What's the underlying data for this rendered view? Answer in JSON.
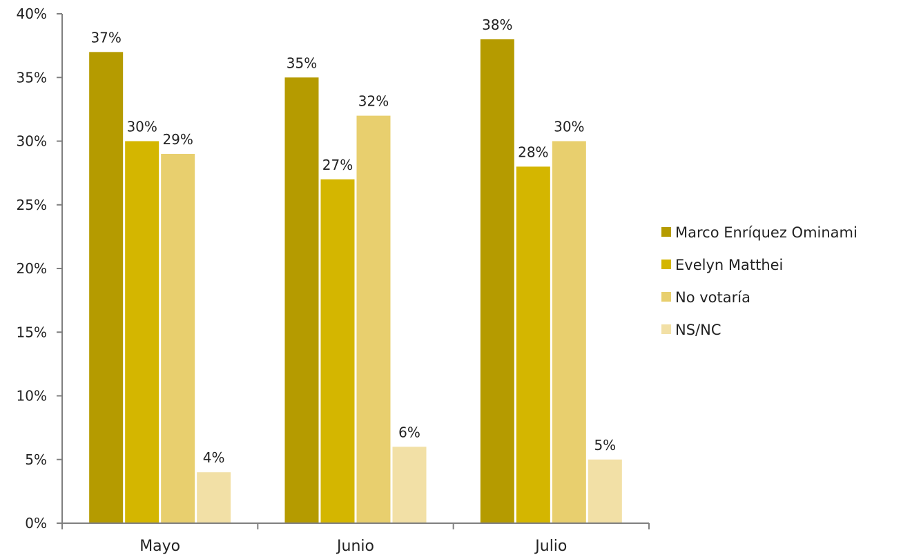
{
  "chart_data": {
    "type": "bar",
    "categories": [
      "Mayo",
      "Junio",
      "Julio"
    ],
    "series": [
      {
        "name": "Marco Enríquez Ominami",
        "values": [
          37,
          35,
          38
        ],
        "labels": [
          "37%",
          "35%",
          "38%"
        ],
        "color": "#b59b00"
      },
      {
        "name": "Evelyn Matthei",
        "values": [
          30,
          27,
          28
        ],
        "labels": [
          "30%",
          "27%",
          "28%"
        ],
        "color": "#d4b600"
      },
      {
        "name": "No votaría",
        "values": [
          29,
          32,
          30
        ],
        "labels": [
          "29%",
          "32%",
          "30%"
        ],
        "color": "#e8cf6e"
      },
      {
        "name": "NS/NC",
        "values": [
          4,
          6,
          5
        ],
        "labels": [
          "4%",
          "6%",
          "5%"
        ],
        "color": "#f2e0a6"
      }
    ],
    "ylim": [
      0,
      40
    ],
    "yticks": [
      0,
      5,
      10,
      15,
      20,
      25,
      30,
      35,
      40
    ],
    "ytick_labels": [
      "0%",
      "5%",
      "10%",
      "15%",
      "20%",
      "25%",
      "30%",
      "35%",
      "40%"
    ],
    "legend_placement": "right",
    "grid": false,
    "axis_color": "#7f7f7f"
  }
}
